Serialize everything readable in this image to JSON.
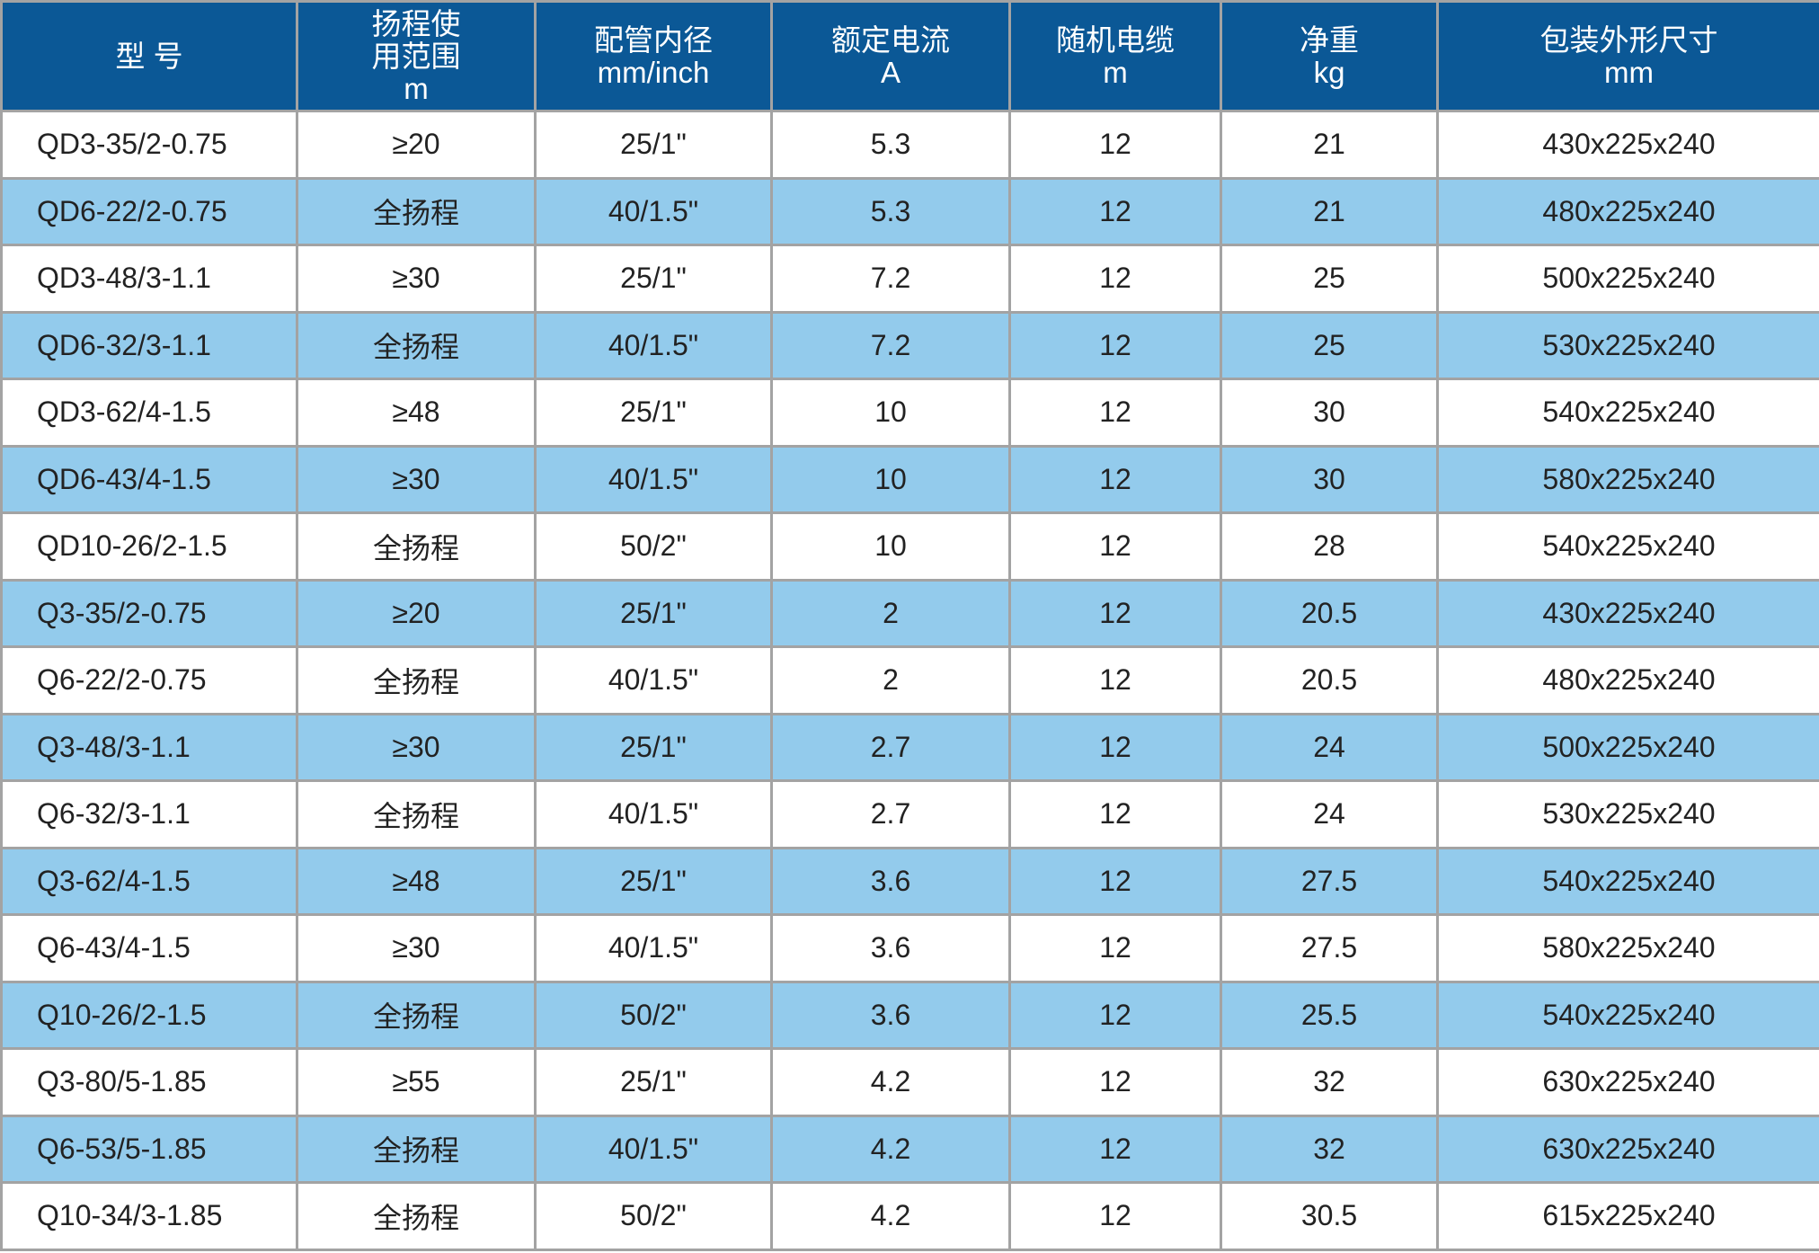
{
  "colors": {
    "header": "#0b5896",
    "alt_row": "#93cbec",
    "row": "#ffffff"
  },
  "headers": [
    {
      "lines": [
        "型 号"
      ]
    },
    {
      "lines": [
        "扬程使",
        "用范围",
        "m"
      ]
    },
    {
      "lines": [
        "配管内径",
        "mm/inch"
      ]
    },
    {
      "lines": [
        "额定电流",
        "A"
      ]
    },
    {
      "lines": [
        "随机电缆",
        "m"
      ]
    },
    {
      "lines": [
        "净重",
        "kg"
      ]
    },
    {
      "lines": [
        "包装外形尺寸",
        "mm"
      ]
    }
  ],
  "rows": [
    [
      "QD3-35/2-0.75",
      "≥20",
      "25/1\"",
      "5.3",
      "12",
      "21",
      "430x225x240"
    ],
    [
      "QD6-22/2-0.75",
      "全扬程",
      "40/1.5\"",
      "5.3",
      "12",
      "21",
      "480x225x240"
    ],
    [
      "QD3-48/3-1.1",
      "≥30",
      "25/1\"",
      "7.2",
      "12",
      "25",
      "500x225x240"
    ],
    [
      "QD6-32/3-1.1",
      "全扬程",
      "40/1.5\"",
      "7.2",
      "12",
      "25",
      "530x225x240"
    ],
    [
      "QD3-62/4-1.5",
      "≥48",
      "25/1\"",
      "10",
      "12",
      "30",
      "540x225x240"
    ],
    [
      "QD6-43/4-1.5",
      "≥30",
      "40/1.5\"",
      "10",
      "12",
      "30",
      "580x225x240"
    ],
    [
      "QD10-26/2-1.5",
      "全扬程",
      "50/2\"",
      "10",
      "12",
      "28",
      "540x225x240"
    ],
    [
      "Q3-35/2-0.75",
      "≥20",
      "25/1\"",
      "2",
      "12",
      "20.5",
      "430x225x240"
    ],
    [
      "Q6-22/2-0.75",
      "全扬程",
      "40/1.5\"",
      "2",
      "12",
      "20.5",
      "480x225x240"
    ],
    [
      "Q3-48/3-1.1",
      "≥30",
      "25/1\"",
      "2.7",
      "12",
      "24",
      "500x225x240"
    ],
    [
      "Q6-32/3-1.1",
      "全扬程",
      "40/1.5\"",
      "2.7",
      "12",
      "24",
      "530x225x240"
    ],
    [
      "Q3-62/4-1.5",
      "≥48",
      "25/1\"",
      "3.6",
      "12",
      "27.5",
      "540x225x240"
    ],
    [
      "Q6-43/4-1.5",
      "≥30",
      "40/1.5\"",
      "3.6",
      "12",
      "27.5",
      "580x225x240"
    ],
    [
      "Q10-26/2-1.5",
      "全扬程",
      "50/2\"",
      "3.6",
      "12",
      "25.5",
      "540x225x240"
    ],
    [
      "Q3-80/5-1.85",
      "≥55",
      "25/1\"",
      "4.2",
      "12",
      "32",
      "630x225x240"
    ],
    [
      "Q6-53/5-1.85",
      "全扬程",
      "40/1.5\"",
      "4.2",
      "12",
      "32",
      "630x225x240"
    ],
    [
      "Q10-34/3-1.85",
      "全扬程",
      "50/2\"",
      "4.2",
      "12",
      "30.5",
      "615x225x240"
    ]
  ]
}
